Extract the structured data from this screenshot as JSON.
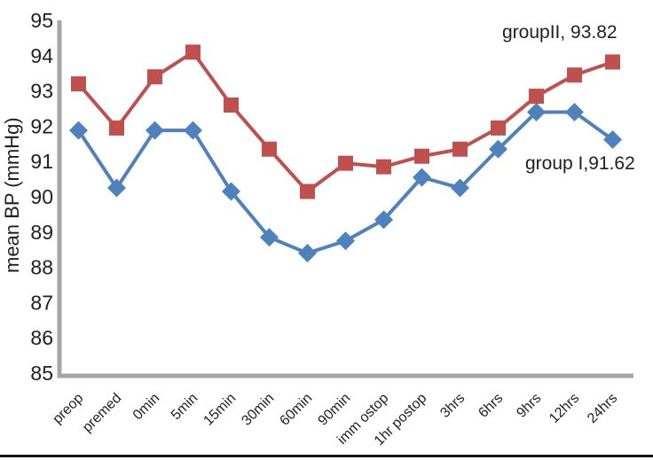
{
  "chart": {
    "ylabel": "mean BP (mmHg)",
    "annotations": {
      "group2": "groupII, 93.82",
      "group1": "group I,91.62"
    }
  },
  "style": {
    "axis_color": "#a6a6a6",
    "text_color": "#1f1f1f",
    "background": "#ffffff",
    "bottom_rule_color": "#141414"
  },
  "chart_data": {
    "type": "line",
    "title": "",
    "xlabel": "",
    "ylabel": "mean BP (mmHg)",
    "ylim": [
      85,
      95
    ],
    "ytick_step": 1,
    "grid": false,
    "legend_position": "none",
    "categories": [
      "preop",
      "premed",
      "0min",
      "5min",
      "15min",
      "30min",
      "60min",
      "90min",
      "imm ostop",
      "1hr postop",
      "3hrs",
      "6hrs",
      "9hrs",
      "12hrs",
      "24hrs"
    ],
    "series": [
      {
        "name": "group I",
        "marker": "diamond",
        "color": "#4F81BD",
        "values": [
          91.88,
          90.25,
          91.88,
          91.88,
          90.15,
          88.85,
          88.4,
          88.75,
          89.35,
          90.55,
          90.25,
          91.35,
          92.4,
          92.4,
          91.62
        ],
        "end_label": "group I,91.62"
      },
      {
        "name": "groupII",
        "marker": "square",
        "color": "#C0504D",
        "values": [
          93.2,
          91.95,
          93.4,
          94.1,
          92.6,
          91.35,
          90.15,
          90.95,
          90.85,
          91.15,
          91.35,
          91.95,
          92.85,
          93.45,
          93.82
        ],
        "end_label": "groupII, 93.82"
      }
    ]
  }
}
